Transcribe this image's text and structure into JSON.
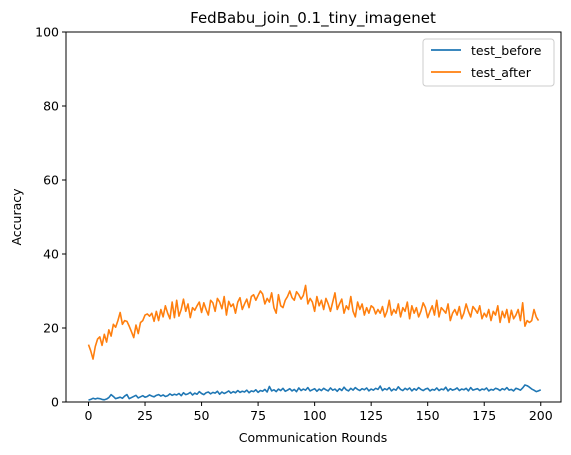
{
  "chart_data": {
    "type": "line",
    "title": "FedBabu_join_0.1_tiny_imagenet",
    "xlabel": "Communication Rounds",
    "ylabel": "Accuracy",
    "xlim": [
      -9.95,
      208.95
    ],
    "ylim": [
      0,
      100
    ],
    "xticks": [
      0,
      25,
      50,
      75,
      100,
      125,
      150,
      175,
      200
    ],
    "yticks": [
      0,
      20,
      40,
      60,
      80,
      100
    ],
    "grid": false,
    "legend_position": "top-right",
    "series": [
      {
        "name": "test_before",
        "color": "#1f77b4",
        "values": [
          0.5,
          0.7,
          1.0,
          0.8,
          1.0,
          0.9,
          0.7,
          0.6,
          0.8,
          1.2,
          2.0,
          1.5,
          0.9,
          1.1,
          1.3,
          1.0,
          1.6,
          2.0,
          0.9,
          1.2,
          1.5,
          1.8,
          1.1,
          1.4,
          1.7,
          1.3,
          1.5,
          1.9,
          1.6,
          1.4,
          1.8,
          2.0,
          1.6,
          1.9,
          1.5,
          1.7,
          2.2,
          1.8,
          2.1,
          1.9,
          2.3,
          1.7,
          2.5,
          2.0,
          2.2,
          2.6,
          1.9,
          2.4,
          2.1,
          2.8,
          2.3,
          2.0,
          2.5,
          2.7,
          2.2,
          2.6,
          2.4,
          2.9,
          2.1,
          2.7,
          2.3,
          2.6,
          3.0,
          2.4,
          2.8,
          2.5,
          3.1,
          2.6,
          2.9,
          2.7,
          3.2,
          2.5,
          3.0,
          2.8,
          3.3,
          2.6,
          3.1,
          2.9,
          3.4,
          2.7,
          4.2,
          3.0,
          3.3,
          2.8,
          3.5,
          3.1,
          3.7,
          2.9,
          3.2,
          3.6,
          3.0,
          3.4,
          2.8,
          3.8,
          3.1,
          3.5,
          3.2,
          3.9,
          3.0,
          3.3,
          3.6,
          2.9,
          3.5,
          3.1,
          3.7,
          3.3,
          3.0,
          3.8,
          3.2,
          3.5,
          2.9,
          3.6,
          3.1,
          4.0,
          3.3,
          3.0,
          3.7,
          3.2,
          3.9,
          3.4,
          3.1,
          3.6,
          3.3,
          3.8,
          3.0,
          3.5,
          3.2,
          3.7,
          3.4,
          4.3,
          3.1,
          3.6,
          3.3,
          3.9,
          3.0,
          3.5,
          3.2,
          4.1,
          3.4,
          3.1,
          3.7,
          3.3,
          3.8,
          3.0,
          3.6,
          3.2,
          3.9,
          3.4,
          3.1,
          3.5,
          3.7,
          3.0,
          3.4,
          3.2,
          3.8,
          3.1,
          3.5,
          3.3,
          4.0,
          3.0,
          3.6,
          3.2,
          3.4,
          3.8,
          3.1,
          3.5,
          3.3,
          3.7,
          3.0,
          3.9,
          3.2,
          3.4,
          3.6,
          3.1,
          3.5,
          3.3,
          3.8,
          3.0,
          3.4,
          3.2,
          3.7,
          3.5,
          3.1,
          3.6,
          3.3,
          3.9,
          3.2,
          3.4,
          3.0,
          3.7,
          3.5,
          3.2,
          3.8,
          4.6,
          4.4,
          4.0,
          3.5,
          3.2,
          2.8,
          3.0,
          3.3
        ]
      },
      {
        "name": "test_after",
        "color": "#ff7f0e",
        "values": [
          15.5,
          13.8,
          11.6,
          15.0,
          17.0,
          17.6,
          15.3,
          18.3,
          16.2,
          19.5,
          17.8,
          21.0,
          20.2,
          22.0,
          24.2,
          21.0,
          22.0,
          21.8,
          20.5,
          19.0,
          17.4,
          20.8,
          18.5,
          21.5,
          22.0,
          23.5,
          23.8,
          23.2,
          24.0,
          21.8,
          24.5,
          22.0,
          25.0,
          23.0,
          26.0,
          24.0,
          22.5,
          27.0,
          22.8,
          27.5,
          23.2,
          25.0,
          27.8,
          24.5,
          26.5,
          22.8,
          25.5,
          24.8,
          26.0,
          27.0,
          24.2,
          26.8,
          25.0,
          23.5,
          27.5,
          26.8,
          24.5,
          28.0,
          27.0,
          25.2,
          28.5,
          23.5,
          27.2,
          25.8,
          26.5,
          24.0,
          27.0,
          28.2,
          25.0,
          26.5,
          27.8,
          25.5,
          28.5,
          29.0,
          27.5,
          28.8,
          30.0,
          29.2,
          26.5,
          28.0,
          27.0,
          29.5,
          25.5,
          24.0,
          29.0,
          26.0,
          25.5,
          27.5,
          28.5,
          30.0,
          28.2,
          27.5,
          29.8,
          29.0,
          27.8,
          28.8,
          31.5,
          26.5,
          28.0,
          27.0,
          24.5,
          28.5,
          26.0,
          27.5,
          25.0,
          28.0,
          26.5,
          24.5,
          27.0,
          29.5,
          25.0,
          26.5,
          27.8,
          24.0,
          26.0,
          25.0,
          28.5,
          24.5,
          23.0,
          27.0,
          25.0,
          26.5,
          23.5,
          25.5,
          24.0,
          26.0,
          25.5,
          23.8,
          25.0,
          24.0,
          25.8,
          23.0,
          24.5,
          27.5,
          23.5,
          25.0,
          24.0,
          26.5,
          23.0,
          25.5,
          24.5,
          27.0,
          22.5,
          26.0,
          24.0,
          25.5,
          23.0,
          24.5,
          26.8,
          25.5,
          22.8,
          24.5,
          26.0,
          23.5,
          27.5,
          23.0,
          25.5,
          24.8,
          24.0,
          26.5,
          22.0,
          24.0,
          25.0,
          23.5,
          25.8,
          22.5,
          24.0,
          26.5,
          24.5,
          23.0,
          25.8,
          25.0,
          24.0,
          26.0,
          22.5,
          24.0,
          23.0,
          25.0,
          22.0,
          24.5,
          23.5,
          26.0,
          21.5,
          24.5,
          22.8,
          25.0,
          21.5,
          24.8,
          22.5,
          23.5,
          25.0,
          22.0,
          26.8,
          20.5,
          22.0,
          21.5,
          22.0,
          25.0,
          23.0,
          22.0
        ]
      }
    ]
  }
}
